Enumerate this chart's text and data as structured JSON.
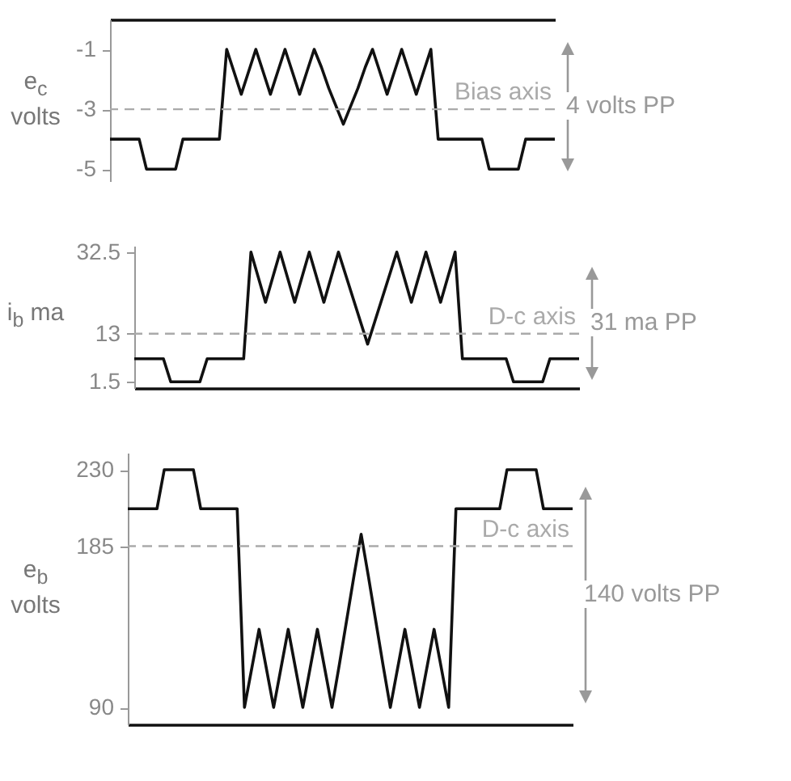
{
  "chart_data": [
    {
      "type": "line",
      "ylabel": "e$_{c}$ volts",
      "categories": [
        null,
        null,
        null,
        null,
        null,
        null,
        null,
        null,
        null,
        null,
        null,
        null,
        null,
        null,
        null,
        null,
        null,
        null,
        null,
        null,
        null,
        null,
        null,
        null,
        null,
        null,
        null,
        null,
        null,
        null,
        null,
        null,
        null,
        null,
        null,
        null,
        null,
        null,
        null,
        null,
        null,
        null,
        null,
        null,
        null,
        null,
        null,
        null,
        null,
        null,
        null,
        null,
        null,
        null,
        null,
        null,
        null,
        null,
        null,
        null,
        null,
        null
      ],
      "values": [
        -4,
        -4,
        -4,
        -4,
        -4,
        -5,
        -5,
        -5,
        -5,
        -5,
        -4,
        -4,
        -4,
        -4,
        -4,
        -4,
        -1,
        -1.75,
        -2.5,
        -1.75,
        -1,
        -1.75,
        -2.5,
        -1.75,
        -1,
        -1.75,
        -2.5,
        -1.75,
        -1,
        -1.6,
        -2.3,
        -2.9,
        -3.5,
        -2.9,
        -2.3,
        -1.6,
        -1,
        -1.75,
        -2.5,
        -1.75,
        -1,
        -1.75,
        -2.5,
        -1.75,
        -1,
        -4,
        -4,
        -4,
        -4,
        -4,
        -4,
        -4,
        -5,
        -5,
        -5,
        -5,
        -5,
        -4,
        -4,
        -4,
        -4,
        -4
      ],
      "color": "#111111",
      "line_style": "solid",
      "ylim": [
        -5.4,
        0
      ],
      "yticks": [
        -5,
        -3,
        -1
      ],
      "tick_labels": "y",
      "ref_lines": [
        {
          "axis": "y",
          "value": -3,
          "label": "Bias axis",
          "color": "#aaaaaa",
          "line_style": "dashed"
        }
      ],
      "annotations": [
        "4 volts PP"
      ]
    },
    {
      "type": "line",
      "ylabel": "i$_{b}$ ma",
      "categories": [
        null,
        null,
        null,
        null,
        null,
        null,
        null,
        null,
        null,
        null,
        null,
        null,
        null,
        null,
        null,
        null,
        null,
        null,
        null,
        null,
        null,
        null,
        null,
        null,
        null,
        null,
        null,
        null,
        null,
        null,
        null,
        null,
        null,
        null,
        null,
        null,
        null,
        null,
        null,
        null,
        null,
        null,
        null,
        null,
        null,
        null,
        null,
        null,
        null,
        null,
        null,
        null,
        null,
        null,
        null,
        null,
        null,
        null,
        null,
        null,
        null,
        null
      ],
      "values": [
        7,
        7,
        7,
        7,
        7,
        1.5,
        1.5,
        1.5,
        1.5,
        1.5,
        7,
        7,
        7,
        7,
        7,
        7,
        32.5,
        26.5,
        20.5,
        26.5,
        32.5,
        26.5,
        20.5,
        26.5,
        32.5,
        26.5,
        20.5,
        26.5,
        32.5,
        27,
        21.5,
        16,
        10.5,
        16,
        21.5,
        27,
        32.5,
        26.5,
        20.5,
        26.5,
        32.5,
        26.5,
        20.5,
        26.5,
        32.5,
        7,
        7,
        7,
        7,
        7,
        7,
        7,
        1.5,
        1.5,
        1.5,
        1.5,
        1.5,
        7,
        7,
        7,
        7,
        7
      ],
      "color": "#111111",
      "line_style": "solid",
      "ylim": [
        0,
        34
      ],
      "yticks": [
        1.5,
        13,
        32.5
      ],
      "tick_labels": "y",
      "ref_lines": [
        {
          "axis": "y",
          "value": 13,
          "label": "D-c axis",
          "color": "#aaaaaa",
          "line_style": "dashed"
        }
      ],
      "annotations": [
        "31 ma PP"
      ]
    },
    {
      "type": "line",
      "ylabel": "e$_{b}$ volts",
      "categories": [
        null,
        null,
        null,
        null,
        null,
        null,
        null,
        null,
        null,
        null,
        null,
        null,
        null,
        null,
        null,
        null,
        null,
        null,
        null,
        null,
        null,
        null,
        null,
        null,
        null,
        null,
        null,
        null,
        null,
        null,
        null,
        null,
        null,
        null,
        null,
        null,
        null,
        null,
        null,
        null,
        null,
        null,
        null,
        null,
        null,
        null,
        null,
        null,
        null,
        null,
        null,
        null,
        null,
        null,
        null,
        null,
        null,
        null,
        null,
        null,
        null,
        null
      ],
      "values": [
        207,
        207,
        207,
        207,
        207,
        230,
        230,
        230,
        230,
        230,
        207,
        207,
        207,
        207,
        207,
        207,
        90,
        113,
        136,
        113,
        90,
        113,
        136,
        113,
        90,
        113,
        136,
        113,
        90,
        115,
        141,
        167,
        192,
        167,
        141,
        115,
        90,
        113,
        136,
        113,
        90,
        113,
        136,
        113,
        90,
        207,
        207,
        207,
        207,
        207,
        207,
        207,
        230,
        230,
        230,
        230,
        230,
        207,
        207,
        207,
        207,
        207
      ],
      "color": "#111111",
      "line_style": "solid",
      "ylim": [
        80,
        240
      ],
      "yticks": [
        90,
        185,
        230
      ],
      "tick_labels": "y",
      "ref_lines": [
        {
          "axis": "y",
          "value": 185,
          "label": "D-c axis",
          "color": "#aaaaaa",
          "line_style": "dashed"
        }
      ],
      "annotations": [
        "140 volts PP"
      ]
    }
  ]
}
